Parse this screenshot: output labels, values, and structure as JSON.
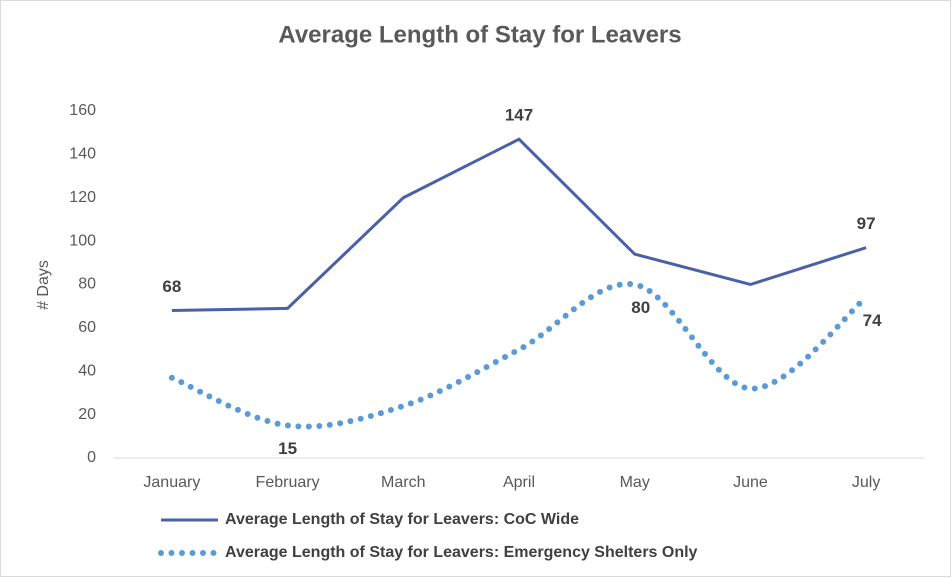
{
  "chart_data": {
    "type": "line",
    "title": "Average Length of Stay for Leavers",
    "y_label": "# Days",
    "categories": [
      "January",
      "February",
      "March",
      "April",
      "May",
      "June",
      "July"
    ],
    "series": [
      {
        "name": "Average Length of Stay for Leavers: CoC Wide",
        "color": "#4a60a8",
        "style": "solid",
        "smooth": false,
        "values": [
          68,
          69,
          120,
          147,
          94,
          80,
          97
        ],
        "value_labels": [
          "68",
          null,
          null,
          "147",
          null,
          null,
          "97"
        ]
      },
      {
        "name": "Average Length of Stay for Leavers: Emergency Shelters Only",
        "color": "#5b9bd5",
        "style": "dotted",
        "smooth": true,
        "values": [
          37,
          15,
          24,
          50,
          80,
          32,
          74
        ],
        "value_labels": [
          null,
          "15",
          null,
          null,
          "80",
          null,
          "74"
        ]
      }
    ],
    "ylim": [
      0,
      160
    ],
    "yticks": [
      0,
      20,
      40,
      60,
      80,
      100,
      120,
      140,
      160
    ],
    "grid": false
  }
}
